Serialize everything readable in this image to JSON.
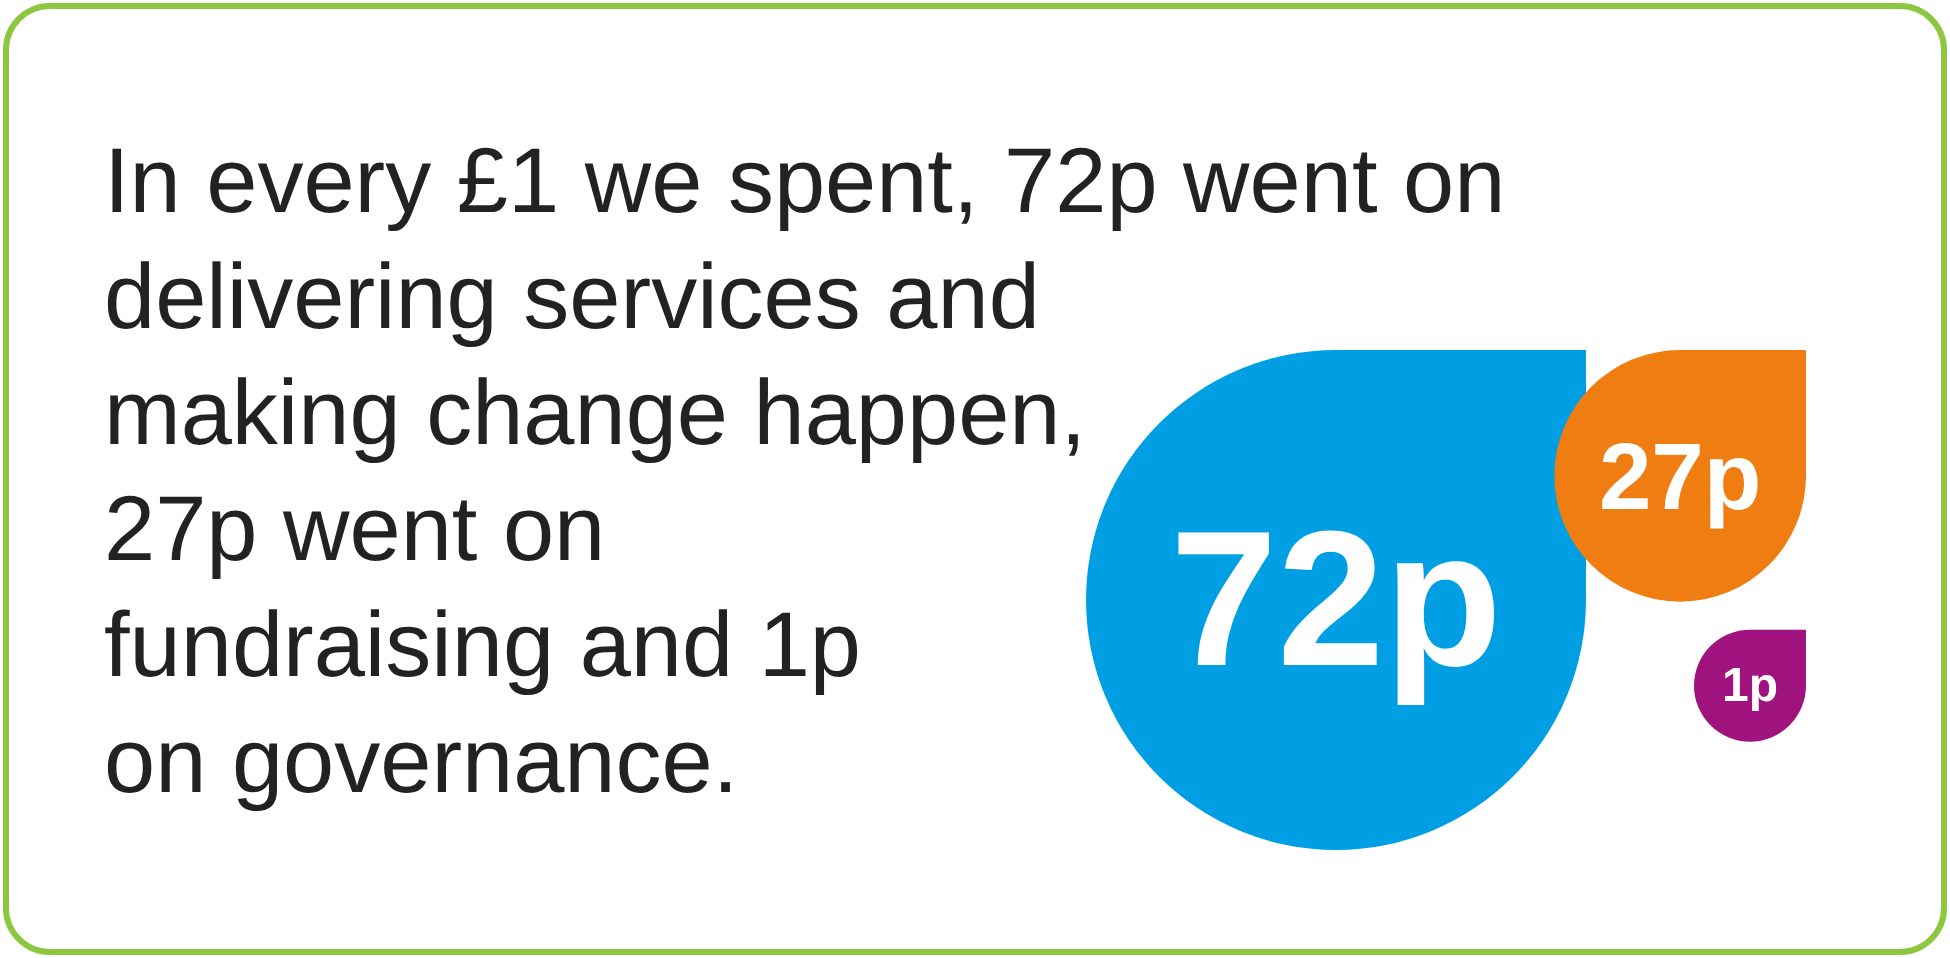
{
  "chart_data": {
    "type": "other",
    "title": "In every £1 we spent, 72p went on delivering services and making change happen, 27p went on fundraising and 1p on governance.",
    "categories": [
      null,
      null,
      null
    ],
    "values": [
      72,
      27,
      1
    ],
    "value_labels": [
      "72p",
      "27p",
      "1p"
    ],
    "colors": [
      "#009fe3",
      "#f07d12",
      "#a0137f"
    ]
  }
}
